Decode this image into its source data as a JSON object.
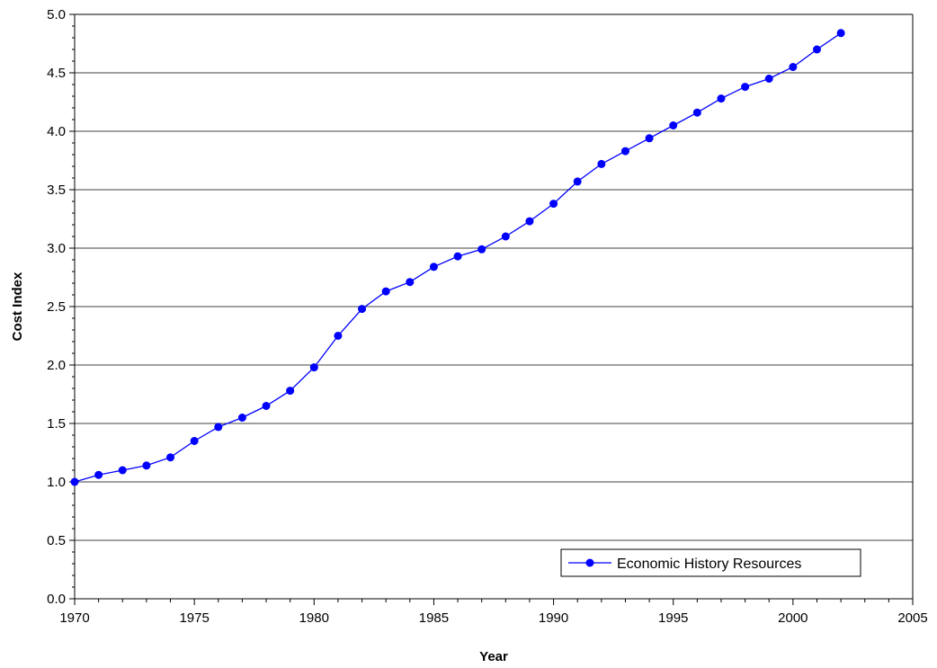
{
  "chart_data": {
    "type": "line",
    "title": "",
    "xlabel": "Year",
    "ylabel": "Cost Index",
    "xlim": [
      1970,
      2005
    ],
    "ylim": [
      0,
      5
    ],
    "x_ticks": [
      "1970",
      "1975",
      "1980",
      "1985",
      "1990",
      "1995",
      "2000",
      "2005"
    ],
    "y_ticks": [
      "0.0",
      "0.5",
      "1.0",
      "1.5",
      "2.0",
      "2.5",
      "3.0",
      "3.5",
      "4.0",
      "4.5",
      "5.0"
    ],
    "grid": "horizontal",
    "legend_position": "bottom-right",
    "series": [
      {
        "name": "Economic History Resources",
        "color": "#0000ff",
        "marker": "circle",
        "x": [
          1970,
          1971,
          1972,
          1973,
          1974,
          1975,
          1976,
          1977,
          1978,
          1979,
          1980,
          1981,
          1982,
          1983,
          1984,
          1985,
          1986,
          1987,
          1988,
          1989,
          1990,
          1991,
          1992,
          1993,
          1994,
          1995,
          1996,
          1997,
          1998,
          1999,
          2000,
          2001,
          2002
        ],
        "values": [
          1.0,
          1.06,
          1.1,
          1.14,
          1.21,
          1.35,
          1.47,
          1.55,
          1.65,
          1.78,
          1.98,
          2.25,
          2.48,
          2.63,
          2.71,
          2.84,
          2.93,
          2.99,
          3.1,
          3.23,
          3.38,
          3.57,
          3.72,
          3.83,
          3.94,
          4.05,
          4.16,
          4.28,
          4.38,
          4.45,
          4.55,
          4.7,
          4.84
        ]
      }
    ]
  }
}
